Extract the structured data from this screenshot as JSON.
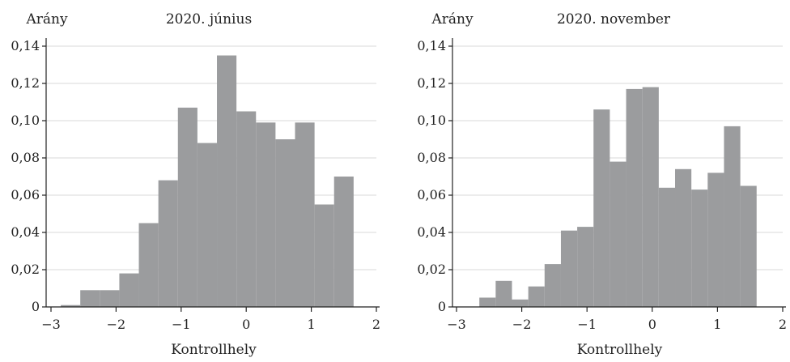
{
  "colors": {
    "bar": "#9b9c9e",
    "grid": "#d9d9d9",
    "axis": "#222222",
    "background": "#ffffff"
  },
  "chart_data": [
    {
      "type": "bar",
      "title": "2020. június",
      "ylabel": "Arány",
      "xlabel": "Kontrollhely",
      "xlim": [
        -3,
        2
      ],
      "ylim": [
        0,
        0.14
      ],
      "x_ticks": [
        -3,
        -2,
        -1,
        0,
        1,
        2
      ],
      "x_tick_labels": [
        "−3",
        "−2",
        "−1",
        "0",
        "1",
        "2"
      ],
      "y_ticks": [
        0,
        0.02,
        0.04,
        0.06,
        0.08,
        0.1,
        0.12,
        0.14
      ],
      "y_tick_labels": [
        "0",
        "0,02",
        "0,04",
        "0,06",
        "0,08",
        "0,10",
        "0,12",
        "0,14"
      ],
      "grid": "horizontal",
      "legend": "none",
      "bin_width": 0.3,
      "bin_edges": [
        -2.85,
        -2.55,
        -2.25,
        -1.95,
        -1.65,
        -1.35,
        -1.05,
        -0.75,
        -0.45,
        -0.15,
        0.15,
        0.45,
        0.75,
        1.05,
        1.35,
        1.65
      ],
      "values": [
        0.001,
        0.009,
        0.009,
        0.018,
        0.045,
        0.068,
        0.107,
        0.088,
        0.135,
        0.105,
        0.099,
        0.09,
        0.099,
        0.055,
        0.07
      ]
    },
    {
      "type": "bar",
      "title": "2020. november",
      "ylabel": "Arány",
      "xlabel": "Kontrollhely",
      "xlim": [
        -3,
        2
      ],
      "ylim": [
        0,
        0.14
      ],
      "x_ticks": [
        -3,
        -2,
        -1,
        0,
        1,
        2
      ],
      "x_tick_labels": [
        "−3",
        "−2",
        "−1",
        "0",
        "1",
        "2"
      ],
      "y_ticks": [
        0,
        0.02,
        0.04,
        0.06,
        0.08,
        0.1,
        0.12,
        0.14
      ],
      "y_tick_labels": [
        "0",
        "0,02",
        "0,04",
        "0,06",
        "0,08",
        "0,10",
        "0,12",
        "0,14"
      ],
      "grid": "horizontal",
      "legend": "none",
      "bin_width": 0.25,
      "bin_edges": [
        -2.65,
        -2.4,
        -2.15,
        -1.9,
        -1.65,
        -1.4,
        -1.15,
        -0.9,
        -0.65,
        -0.4,
        -0.15,
        0.1,
        0.35,
        0.6,
        0.85,
        1.1,
        1.35,
        1.6
      ],
      "values": [
        0.005,
        0.014,
        0.004,
        0.011,
        0.023,
        0.041,
        0.043,
        0.106,
        0.078,
        0.117,
        0.118,
        0.064,
        0.074,
        0.063,
        0.072,
        0.097,
        0.065
      ]
    }
  ]
}
